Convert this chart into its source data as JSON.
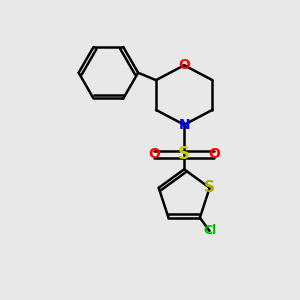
{
  "background_color": "#e8e8e8",
  "bond_color": "#000000",
  "bond_width": 1.8,
  "atom_colors": {
    "O": "#ff0000",
    "N": "#0000ff",
    "S_sulfonyl": "#cccc00",
    "S_thiophene": "#aaaa00",
    "Cl": "#00bb00"
  },
  "font_size_atoms": 10,
  "font_size_cl": 9
}
